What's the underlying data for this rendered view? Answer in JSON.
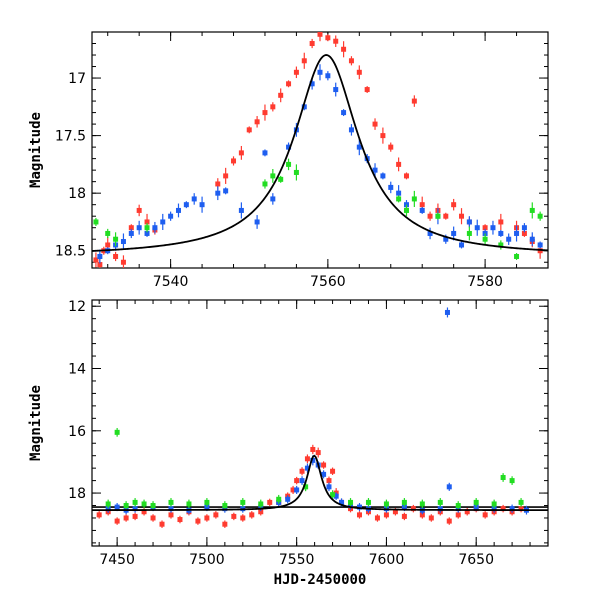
{
  "chart_data": [
    {
      "type": "scatter",
      "title": "",
      "xlabel": "",
      "ylabel": "Magnitude",
      "xlim": [
        7530,
        7588
      ],
      "ylim": [
        18.65,
        16.6
      ],
      "y_inverted": true,
      "xticks": [
        7540,
        7560,
        7580
      ],
      "yticks": [
        17,
        17.5,
        18,
        18.5
      ],
      "grid": false,
      "model_curve": {
        "color": "#000000",
        "peak_x": 7559.8,
        "peak_mag": 16.8,
        "base_mag": 18.55,
        "width": 5.0
      },
      "series": [
        {
          "color": "#ff3b30",
          "points": [
            [
              7530.5,
              18.58
            ],
            [
              7531,
              18.62
            ],
            [
              7531.5,
              18.5
            ],
            [
              7532,
              18.45
            ],
            [
              7533,
              18.55
            ],
            [
              7534,
              18.6
            ],
            [
              7535,
              18.3
            ],
            [
              7536,
              18.15
            ],
            [
              7537,
              18.25
            ],
            [
              7538,
              18.32
            ],
            [
              7546,
              17.92
            ],
            [
              7547,
              17.85
            ],
            [
              7548,
              17.72
            ],
            [
              7549,
              17.65
            ],
            [
              7550,
              17.45
            ],
            [
              7551,
              17.38
            ],
            [
              7552,
              17.3
            ],
            [
              7553,
              17.25
            ],
            [
              7554,
              17.15
            ],
            [
              7555,
              17.05
            ],
            [
              7556,
              16.95
            ],
            [
              7557,
              16.85
            ],
            [
              7558,
              16.7
            ],
            [
              7559,
              16.62
            ],
            [
              7560,
              16.65
            ],
            [
              7561,
              16.68
            ],
            [
              7562,
              16.75
            ],
            [
              7563,
              16.85
            ],
            [
              7564,
              16.95
            ],
            [
              7565,
              17.1
            ],
            [
              7566,
              17.4
            ],
            [
              7567,
              17.5
            ],
            [
              7568,
              17.6
            ],
            [
              7569,
              17.75
            ],
            [
              7570,
              17.85
            ],
            [
              7571,
              17.2
            ],
            [
              7572,
              18.1
            ],
            [
              7573,
              18.2
            ],
            [
              7574,
              18.15
            ],
            [
              7575,
              18.2
            ],
            [
              7576,
              18.1
            ],
            [
              7577,
              18.2
            ],
            [
              7578,
              18.25
            ],
            [
              7580,
              18.3
            ],
            [
              7582,
              18.25
            ],
            [
              7584,
              18.3
            ],
            [
              7585,
              18.35
            ],
            [
              7586,
              18.42
            ],
            [
              7587,
              18.5
            ]
          ]
        },
        {
          "color": "#1e5ef0",
          "points": [
            [
              7531,
              18.55
            ],
            [
              7532,
              18.5
            ],
            [
              7533,
              18.45
            ],
            [
              7534,
              18.42
            ],
            [
              7535,
              18.35
            ],
            [
              7536,
              18.3
            ],
            [
              7537,
              18.35
            ],
            [
              7538,
              18.3
            ],
            [
              7539,
              18.25
            ],
            [
              7540,
              18.2
            ],
            [
              7541,
              18.15
            ],
            [
              7542,
              18.1
            ],
            [
              7543,
              18.05
            ],
            [
              7544,
              18.1
            ],
            [
              7546,
              18.0
            ],
            [
              7547,
              17.98
            ],
            [
              7549,
              18.15
            ],
            [
              7551,
              18.25
            ],
            [
              7552,
              17.65
            ],
            [
              7553,
              18.05
            ],
            [
              7555,
              17.6
            ],
            [
              7556,
              17.45
            ],
            [
              7557,
              17.25
            ],
            [
              7558,
              17.05
            ],
            [
              7559,
              16.95
            ],
            [
              7560,
              16.98
            ],
            [
              7561,
              17.1
            ],
            [
              7562,
              17.3
            ],
            [
              7563,
              17.45
            ],
            [
              7564,
              17.6
            ],
            [
              7565,
              17.7
            ],
            [
              7566,
              17.8
            ],
            [
              7567,
              17.85
            ],
            [
              7568,
              17.95
            ],
            [
              7569,
              18.0
            ],
            [
              7570,
              18.1
            ],
            [
              7572,
              18.15
            ],
            [
              7573,
              18.35
            ],
            [
              7574,
              18.2
            ],
            [
              7575,
              18.4
            ],
            [
              7576,
              18.35
            ],
            [
              7577,
              18.45
            ],
            [
              7578,
              18.25
            ],
            [
              7579,
              18.3
            ],
            [
              7580,
              18.35
            ],
            [
              7581,
              18.3
            ],
            [
              7582,
              18.35
            ],
            [
              7583,
              18.4
            ],
            [
              7584,
              18.35
            ],
            [
              7585,
              18.3
            ],
            [
              7586,
              18.4
            ],
            [
              7587,
              18.45
            ]
          ]
        },
        {
          "color": "#22dd22",
          "points": [
            [
              7530.5,
              18.25
            ],
            [
              7532,
              18.35
            ],
            [
              7533,
              18.4
            ],
            [
              7537,
              18.3
            ],
            [
              7552,
              17.92
            ],
            [
              7553,
              17.85
            ],
            [
              7554,
              17.88
            ],
            [
              7555,
              17.75
            ],
            [
              7556,
              17.82
            ],
            [
              7569,
              18.05
            ],
            [
              7570,
              18.15
            ],
            [
              7571,
              18.05
            ],
            [
              7574,
              18.2
            ],
            [
              7578,
              18.35
            ],
            [
              7580,
              18.4
            ],
            [
              7582,
              18.45
            ],
            [
              7584,
              18.55
            ],
            [
              7586,
              18.15
            ],
            [
              7587,
              18.2
            ]
          ]
        }
      ]
    },
    {
      "type": "scatter",
      "title": "",
      "xlabel": "HJD-2450000",
      "ylabel": "Magnitude",
      "xlim": [
        7436,
        7690
      ],
      "ylim": [
        19.7,
        11.8
      ],
      "y_inverted": true,
      "xticks": [
        7450,
        7500,
        7550,
        7600,
        7650
      ],
      "yticks": [
        12,
        14,
        16,
        18
      ],
      "grid": false,
      "baseline_mag": 18.45,
      "model_curve": {
        "color": "#000000",
        "peak_x": 7559.8,
        "peak_mag": 16.8,
        "base_mag": 18.55,
        "width": 5.0
      },
      "series": [
        {
          "color": "#ff3b30",
          "points": [
            [
              7440,
              18.7
            ],
            [
              7445,
              18.6
            ],
            [
              7450,
              18.9
            ],
            [
              7455,
              18.8
            ],
            [
              7460,
              18.75
            ],
            [
              7465,
              18.6
            ],
            [
              7470,
              18.8
            ],
            [
              7475,
              19.0
            ],
            [
              7480,
              18.7
            ],
            [
              7485,
              18.85
            ],
            [
              7490,
              18.6
            ],
            [
              7495,
              18.9
            ],
            [
              7500,
              18.8
            ],
            [
              7505,
              18.7
            ],
            [
              7510,
              19.0
            ],
            [
              7515,
              18.75
            ],
            [
              7520,
              18.8
            ],
            [
              7525,
              18.7
            ],
            [
              7530,
              18.6
            ],
            [
              7535,
              18.3
            ],
            [
              7540,
              18.3
            ],
            [
              7545,
              18.1
            ],
            [
              7548,
              17.9
            ],
            [
              7550,
              17.6
            ],
            [
              7553,
              17.3
            ],
            [
              7556,
              16.9
            ],
            [
              7559,
              16.6
            ],
            [
              7562,
              16.7
            ],
            [
              7565,
              17.1
            ],
            [
              7568,
              17.6
            ],
            [
              7570,
              17.3
            ],
            [
              7572,
              18.0
            ],
            [
              7575,
              18.3
            ],
            [
              7580,
              18.5
            ],
            [
              7585,
              18.7
            ],
            [
              7590,
              18.6
            ],
            [
              7595,
              18.8
            ],
            [
              7600,
              18.7
            ],
            [
              7605,
              18.6
            ],
            [
              7610,
              18.75
            ],
            [
              7615,
              18.5
            ],
            [
              7620,
              18.7
            ],
            [
              7625,
              18.8
            ],
            [
              7630,
              18.6
            ],
            [
              7635,
              18.9
            ],
            [
              7640,
              18.7
            ],
            [
              7645,
              18.6
            ],
            [
              7650,
              18.5
            ],
            [
              7655,
              18.7
            ],
            [
              7660,
              18.6
            ],
            [
              7665,
              18.5
            ],
            [
              7670,
              18.6
            ],
            [
              7675,
              18.5
            ]
          ]
        },
        {
          "color": "#1e5ef0",
          "points": [
            [
              7445,
              18.5
            ],
            [
              7450,
              18.45
            ],
            [
              7455,
              18.55
            ],
            [
              7460,
              18.5
            ],
            [
              7470,
              18.45
            ],
            [
              7480,
              18.5
            ],
            [
              7490,
              18.55
            ],
            [
              7500,
              18.45
            ],
            [
              7510,
              18.5
            ],
            [
              7520,
              18.5
            ],
            [
              7530,
              18.45
            ],
            [
              7540,
              18.3
            ],
            [
              7545,
              18.2
            ],
            [
              7550,
              17.9
            ],
            [
              7553,
              17.6
            ],
            [
              7556,
              17.2
            ],
            [
              7559,
              16.95
            ],
            [
              7562,
              17.1
            ],
            [
              7565,
              17.4
            ],
            [
              7568,
              17.8
            ],
            [
              7572,
              18.1
            ],
            [
              7575,
              18.3
            ],
            [
              7580,
              18.4
            ],
            [
              7585,
              18.45
            ],
            [
              7590,
              18.5
            ],
            [
              7600,
              18.5
            ],
            [
              7610,
              18.45
            ],
            [
              7620,
              18.55
            ],
            [
              7630,
              18.5
            ],
            [
              7634,
              12.2
            ],
            [
              7635,
              17.8
            ],
            [
              7640,
              18.5
            ],
            [
              7650,
              18.45
            ],
            [
              7660,
              18.5
            ],
            [
              7670,
              18.5
            ],
            [
              7678,
              18.55
            ]
          ]
        },
        {
          "color": "#22dd22",
          "points": [
            [
              7445,
              18.35
            ],
            [
              7450,
              16.05
            ],
            [
              7455,
              18.4
            ],
            [
              7460,
              18.3
            ],
            [
              7465,
              18.35
            ],
            [
              7470,
              18.4
            ],
            [
              7480,
              18.3
            ],
            [
              7490,
              18.35
            ],
            [
              7500,
              18.3
            ],
            [
              7510,
              18.4
            ],
            [
              7520,
              18.3
            ],
            [
              7530,
              18.35
            ],
            [
              7540,
              18.2
            ],
            [
              7555,
              17.8
            ],
            [
              7570,
              18.05
            ],
            [
              7580,
              18.3
            ],
            [
              7590,
              18.3
            ],
            [
              7600,
              18.35
            ],
            [
              7610,
              18.3
            ],
            [
              7620,
              18.35
            ],
            [
              7630,
              18.3
            ],
            [
              7640,
              18.4
            ],
            [
              7650,
              18.3
            ],
            [
              7660,
              18.35
            ],
            [
              7665,
              17.5
            ],
            [
              7670,
              17.6
            ],
            [
              7675,
              18.3
            ]
          ]
        }
      ]
    }
  ]
}
